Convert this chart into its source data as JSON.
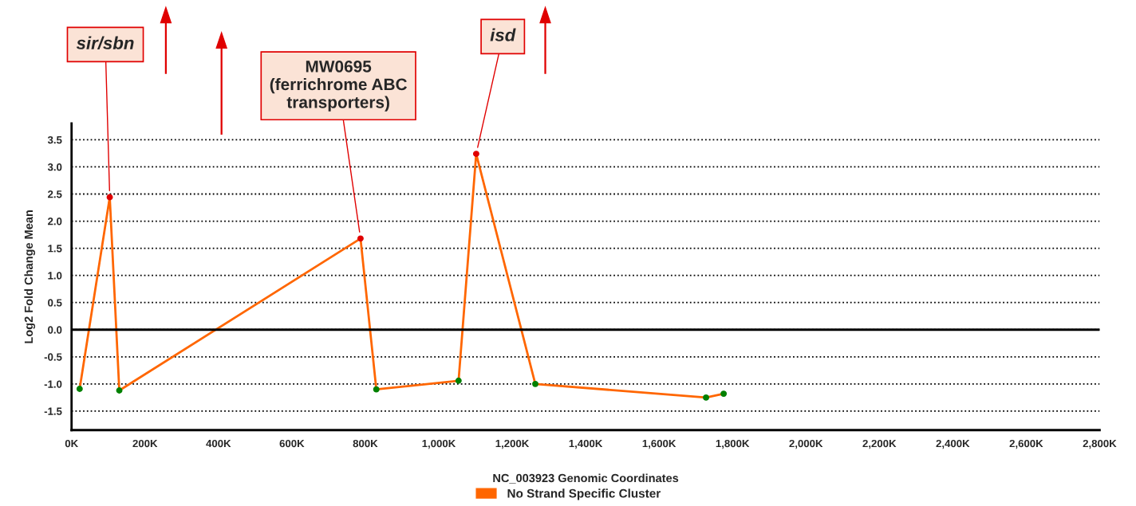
{
  "chart_data": {
    "type": "line",
    "xlabel": "NC_003923 Genomic Coordinates",
    "ylabel": "Log2 Fold Change Mean",
    "series": [
      {
        "name": "No Strand Specific Cluster",
        "color": "#ff6600",
        "x": [
          22,
          104,
          130,
          787,
          830,
          1054,
          1102,
          1263,
          1728,
          1776
        ],
        "values": [
          -1.09,
          2.44,
          -1.12,
          1.68,
          -1.1,
          -0.94,
          3.24,
          -1.0,
          -1.25,
          -1.18
        ],
        "colors": [
          "#008000",
          "#e00000",
          "#008000",
          "#e00000",
          "#008000",
          "#008000",
          "#e00000",
          "#008000",
          "#008000",
          "#008000"
        ]
      }
    ],
    "marker": "circle",
    "line_style": "solid",
    "xlim": [
      0,
      2800
    ],
    "xticks": [
      {
        "value": 0,
        "label": "0K"
      },
      {
        "value": 200,
        "label": "200K"
      },
      {
        "value": 400,
        "label": "400K"
      },
      {
        "value": 600,
        "label": "600K"
      },
      {
        "value": 800,
        "label": "800K"
      },
      {
        "value": 1000,
        "label": "1,000K"
      },
      {
        "value": 1200,
        "label": "1,200K"
      },
      {
        "value": 1400,
        "label": "1,400K"
      },
      {
        "value": 1600,
        "label": "1,600K"
      },
      {
        "value": 1800,
        "label": "1,800K"
      },
      {
        "value": 2000,
        "label": "2,000K"
      },
      {
        "value": 2200,
        "label": "2,200K"
      },
      {
        "value": 2400,
        "label": "2,400K"
      },
      {
        "value": 2600,
        "label": "2,600K"
      },
      {
        "value": 2800,
        "label": "2,800K"
      }
    ],
    "ylim": [
      -1.85,
      3.8
    ],
    "yticks": [
      -1.5,
      {
        "value": -1,
        "label": "-1.0"
      },
      -0.5,
      {
        "value": 0,
        "label": "0.0"
      },
      0.5,
      {
        "value": 1,
        "label": "1.0"
      },
      1.5,
      {
        "value": 2,
        "label": "2.0"
      },
      2.5,
      {
        "value": 3,
        "label": "3.0"
      },
      3.5
    ],
    "grid": "y",
    "legend": "bottom",
    "ref_lines": [
      {
        "axis": "y",
        "value": 0,
        "color": "#000000",
        "line_style": "solid"
      }
    ],
    "annotations": [
      {
        "text": "sir/sbn",
        "x": 104,
        "y": 2.44
      },
      {
        "text": "MW0695\n(ferrichrome ABC\ntransporters)",
        "x": 787,
        "y": 1.68
      },
      {
        "text": "isd",
        "x": 1102,
        "y": 3.24
      }
    ]
  }
}
